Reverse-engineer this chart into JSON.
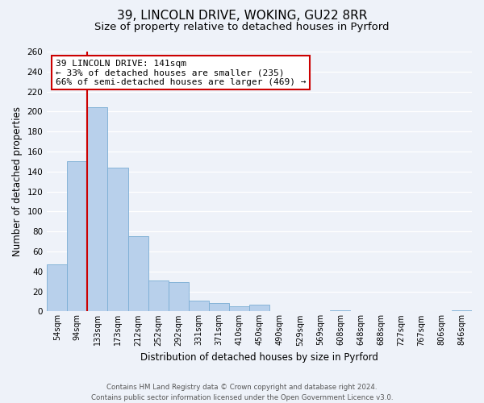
{
  "title": "39, LINCOLN DRIVE, WOKING, GU22 8RR",
  "subtitle": "Size of property relative to detached houses in Pyrford",
  "xlabel": "Distribution of detached houses by size in Pyrford",
  "ylabel": "Number of detached properties",
  "bin_labels": [
    "54sqm",
    "94sqm",
    "133sqm",
    "173sqm",
    "212sqm",
    "252sqm",
    "292sqm",
    "331sqm",
    "371sqm",
    "410sqm",
    "450sqm",
    "490sqm",
    "529sqm",
    "569sqm",
    "608sqm",
    "648sqm",
    "688sqm",
    "727sqm",
    "767sqm",
    "806sqm",
    "846sqm"
  ],
  "bar_values": [
    47,
    150,
    204,
    144,
    75,
    31,
    29,
    11,
    8,
    5,
    7,
    0,
    0,
    0,
    1,
    0,
    0,
    0,
    0,
    0,
    1
  ],
  "bar_color": "#b8d0eb",
  "bar_edge_color": "#7aadd4",
  "vline_color": "#cc0000",
  "annotation_title": "39 LINCOLN DRIVE: 141sqm",
  "annotation_line1": "← 33% of detached houses are smaller (235)",
  "annotation_line2": "66% of semi-detached houses are larger (469) →",
  "annotation_box_facecolor": "#ffffff",
  "annotation_box_edgecolor": "#cc0000",
  "ylim": [
    0,
    260
  ],
  "yticks": [
    0,
    20,
    40,
    60,
    80,
    100,
    120,
    140,
    160,
    180,
    200,
    220,
    240,
    260
  ],
  "footer_line1": "Contains HM Land Registry data © Crown copyright and database right 2024.",
  "footer_line2": "Contains public sector information licensed under the Open Government Licence v3.0.",
  "background_color": "#eef2f9",
  "grid_color": "#ffffff",
  "title_fontsize": 11,
  "subtitle_fontsize": 9.5,
  "ylabel_fontsize": 8.5,
  "xlabel_fontsize": 8.5,
  "footer_fontsize": 6.2,
  "tick_fontsize": 7.5,
  "annot_fontsize": 8.0
}
